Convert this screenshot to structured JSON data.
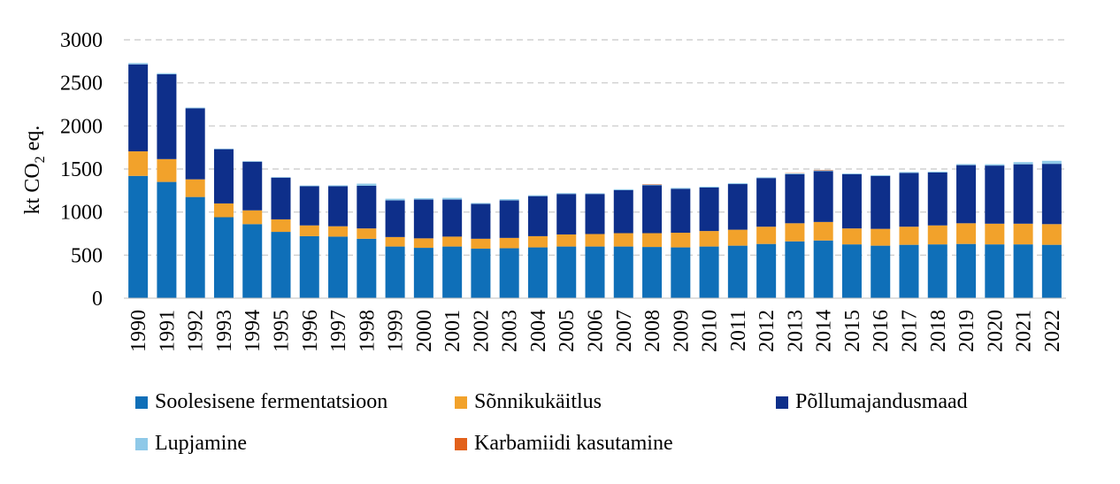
{
  "chart_data": {
    "type": "bar",
    "stacked": true,
    "title": "",
    "xlabel": "",
    "ylabel_main": "kt CO",
    "ylabel_sub": "2",
    "ylabel_suffix": " eq.",
    "ylim": [
      0,
      3000
    ],
    "yticks": [
      0,
      500,
      1000,
      1500,
      2000,
      2500,
      3000
    ],
    "grid": true,
    "categories": [
      "1990",
      "1991",
      "1992",
      "1993",
      "1994",
      "1995",
      "1996",
      "1997",
      "1998",
      "1999",
      "2000",
      "2001",
      "2002",
      "2003",
      "2004",
      "2005",
      "2006",
      "2007",
      "2008",
      "2009",
      "2010",
      "2011",
      "2012",
      "2013",
      "2014",
      "2015",
      "2016",
      "2017",
      "2018",
      "2019",
      "2020",
      "2021",
      "2022"
    ],
    "series": [
      {
        "name": "Soolesisene fermentatsioon",
        "color": "#0F6FB8",
        "values": [
          1420,
          1350,
          1175,
          940,
          860,
          770,
          720,
          715,
          690,
          600,
          585,
          600,
          575,
          580,
          590,
          600,
          600,
          600,
          595,
          590,
          600,
          610,
          630,
          660,
          670,
          625,
          610,
          620,
          625,
          630,
          625,
          625,
          620
        ]
      },
      {
        "name": "Sõnnikukäitlus",
        "color": "#F2A22B",
        "values": [
          285,
          265,
          205,
          160,
          160,
          145,
          125,
          120,
          120,
          110,
          110,
          115,
          115,
          120,
          130,
          140,
          145,
          155,
          160,
          170,
          180,
          185,
          200,
          210,
          215,
          185,
          195,
          210,
          220,
          240,
          240,
          240,
          240
        ]
      },
      {
        "name": "Põllumajandusmaad",
        "color": "#0E2F8A",
        "values": [
          1010,
          985,
          825,
          630,
          565,
          485,
          455,
          465,
          495,
          425,
          450,
          430,
          405,
          435,
          465,
          470,
          465,
          500,
          555,
          510,
          505,
          530,
          565,
          570,
          590,
          630,
          615,
          625,
          615,
          675,
          675,
          690,
          700
        ]
      },
      {
        "name": "Lupjamine",
        "color": "#8FC9E8",
        "values": [
          15,
          12,
          8,
          6,
          6,
          6,
          8,
          10,
          25,
          20,
          15,
          20,
          10,
          15,
          10,
          10,
          8,
          10,
          8,
          10,
          10,
          10,
          8,
          10,
          8,
          8,
          8,
          10,
          10,
          12,
          15,
          25,
          35
        ]
      },
      {
        "name": "Karbamiidi kasutamine",
        "color": "#E2611B",
        "values": [
          0,
          0,
          0,
          0,
          0,
          0,
          0,
          0,
          0,
          0,
          0,
          0,
          0,
          0,
          0,
          0,
          0,
          0,
          5,
          0,
          0,
          0,
          0,
          3,
          5,
          0,
          0,
          0,
          0,
          0,
          0,
          0,
          0
        ]
      }
    ]
  },
  "legend": {
    "items": [
      {
        "label": "Soolesisene fermentatsioon",
        "color": "#0F6FB8"
      },
      {
        "label": "Sõnnikukäitlus",
        "color": "#F2A22B"
      },
      {
        "label": "Põllumajandusmaad",
        "color": "#0E2F8A"
      },
      {
        "label": "Lupjamine",
        "color": "#8FC9E8"
      },
      {
        "label": "Karbamiidi kasutamine",
        "color": "#E2611B"
      }
    ]
  }
}
